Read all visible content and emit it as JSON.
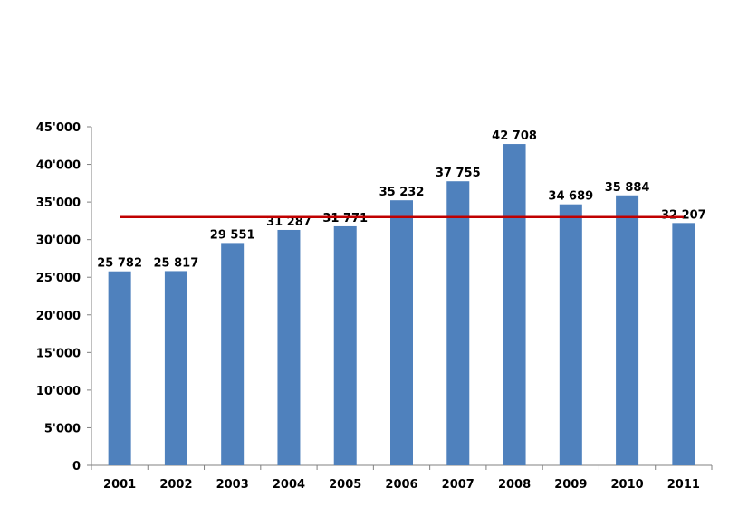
{
  "chart_data": {
    "type": "bar",
    "categories": [
      "2001",
      "2002",
      "2003",
      "2004",
      "2005",
      "2006",
      "2007",
      "2008",
      "2009",
      "2010",
      "2011"
    ],
    "values": [
      25782,
      25817,
      29551,
      31287,
      31771,
      35232,
      37755,
      42708,
      34689,
      35884,
      32207
    ],
    "data_labels": [
      "25 782",
      "25 817",
      "29 551",
      "31 287",
      "31 771",
      "35 232",
      "37 755",
      "42 708",
      "34 689",
      "35 884",
      "32 207"
    ],
    "reference_line": {
      "value": 33000,
      "color": "#c00000"
    },
    "ylim": [
      0,
      45000
    ],
    "yticks": [
      0,
      5000,
      10000,
      15000,
      20000,
      25000,
      30000,
      35000,
      40000,
      45000
    ],
    "ytick_labels": [
      "0",
      "5'000",
      "10'000",
      "15'000",
      "20'000",
      "25'000",
      "30'000",
      "35'000",
      "40'000",
      "45'000"
    ],
    "title": "",
    "xlabel": "",
    "ylabel": "",
    "grid": false,
    "legend": false,
    "bar_color": "#4f81bd",
    "axis_color": "#808080"
  }
}
